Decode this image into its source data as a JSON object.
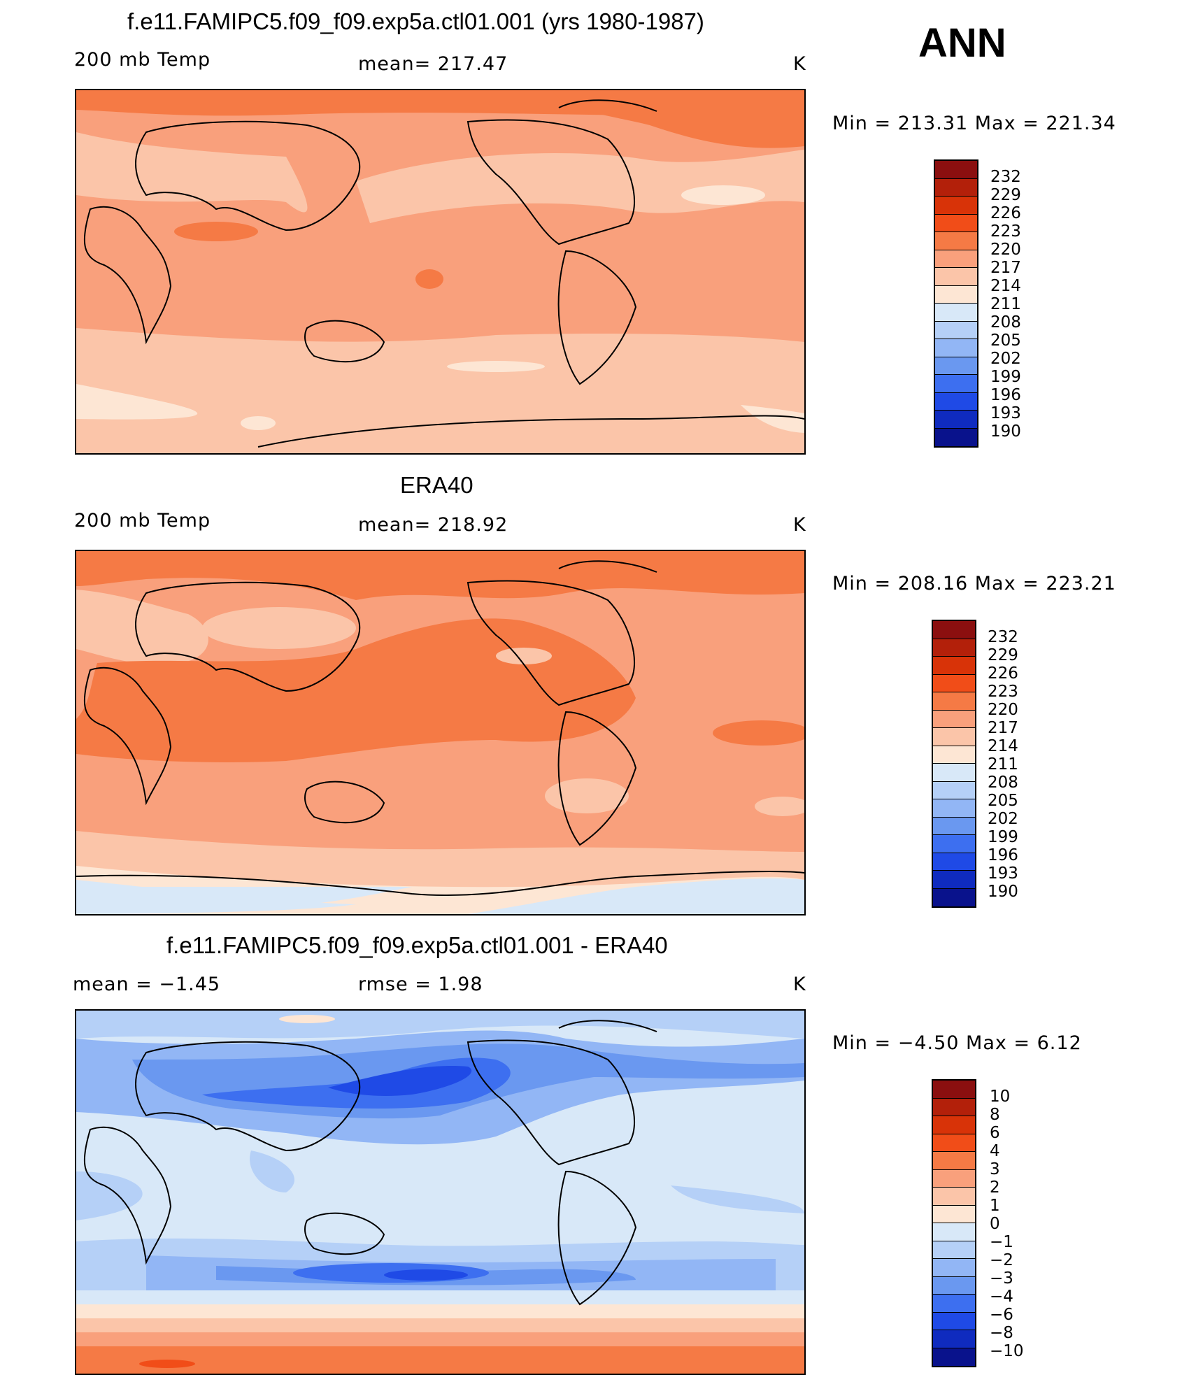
{
  "season": "ANN",
  "panels": [
    {
      "title": "f.e11.FAMIPC5.f09_f09.exp5a.ctl01.001 (yrs 1980-1987)",
      "left_label": "200 mb Temp",
      "center_label": "mean= 217.47",
      "units": "K",
      "stats": "Min = 213.31 Max = 221.34",
      "cbar_labels": [
        "232",
        "229",
        "226",
        "223",
        "220",
        "217",
        "214",
        "211",
        "208",
        "205",
        "202",
        "199",
        "196",
        "193",
        "190"
      ]
    },
    {
      "title": "ERA40",
      "left_label": "200 mb Temp",
      "center_label": "mean= 218.92",
      "units": "K",
      "stats": "Min = 208.16 Max = 223.21",
      "cbar_labels": [
        "232",
        "229",
        "226",
        "223",
        "220",
        "217",
        "214",
        "211",
        "208",
        "205",
        "202",
        "199",
        "196",
        "193",
        "190"
      ]
    },
    {
      "title": "f.e11.FAMIPC5.f09_f09.exp5a.ctl01.001 - ERA40",
      "left_label": "mean =   −1.45",
      "center_label": "rmse =    1.98",
      "units": "K",
      "stats": "Min =  −4.50 Max =    6.12",
      "cbar_labels": [
        "10",
        "8",
        "6",
        "4",
        "3",
        "2",
        "1",
        "0",
        "−1",
        "−2",
        "−3",
        "−4",
        "−6",
        "−8",
        "−10"
      ]
    }
  ],
  "colors": {
    "scale": [
      "#8b0f0f",
      "#b3200a",
      "#d83308",
      "#f14d18",
      "#f57a45",
      "#f9a07c",
      "#fbc5a9",
      "#fde6d4",
      "#d8e8f8",
      "#b5d0f7",
      "#92b6f5",
      "#6a98f0",
      "#3d6ff0",
      "#1f4ae6",
      "#0f2bbf",
      "#09128c"
    ]
  }
}
